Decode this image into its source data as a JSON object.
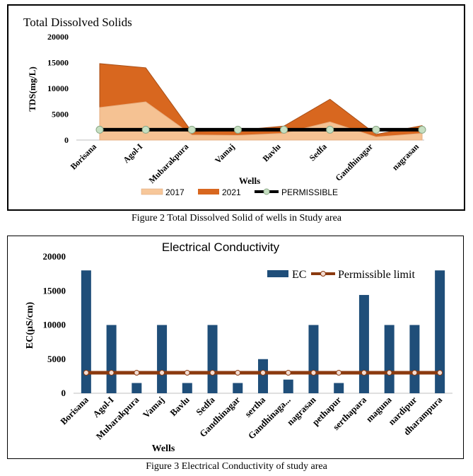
{
  "charts": [
    {
      "title": "Total Dissolved Solids",
      "caption": "Figure 2 Total Dissolved Solid of wells in Study area",
      "xlabel": "Wells",
      "ylabel": "TDS(mg/L)",
      "ylim": [
        0,
        20000
      ],
      "yticks": [
        0,
        5000,
        10000,
        15000,
        20000
      ],
      "colors": {
        "2017": "#f7c79a",
        "2021": "#d8671f",
        "PERMISSIBLE": "#000000",
        "marker": "#c6dfc2"
      }
    },
    {
      "title": "Electrical Conductivity",
      "caption": "Figure 3 Electrical Conductivity of study area",
      "xlabel": "Wells",
      "ylabel": "EC(µS/cm)",
      "ylim": [
        0,
        20000
      ],
      "yticks": [
        0,
        5000,
        10000,
        15000,
        20000
      ],
      "colors": {
        "EC": "#1f4e79",
        "limit": "#8b3a0f",
        "marker": "#f3dcd2"
      }
    }
  ],
  "chart_data": [
    {
      "type": "area",
      "title": "Total Dissolved Solids",
      "xlabel": "Wells",
      "ylabel": "TDS(mg/L)",
      "ylim": [
        0,
        20000
      ],
      "categories": [
        "Borisana",
        "Agol-I",
        "Mubarakpura",
        "Vamaj",
        "Bavlu",
        "Sedfa",
        "Gandhinagar",
        "nagrasan"
      ],
      "series": [
        {
          "name": "2017",
          "values": [
            6300,
            7400,
            1000,
            900,
            1300,
            3500,
            600,
            1300
          ]
        },
        {
          "name": "2021",
          "values": [
            14800,
            14000,
            1600,
            1900,
            2700,
            7900,
            1100,
            2800
          ]
        },
        {
          "name": "PERMISSIBLE",
          "values": [
            2000,
            2000,
            2000,
            2000,
            2000,
            2000,
            2000,
            2000
          ]
        }
      ],
      "legend": "bottom"
    },
    {
      "type": "bar",
      "title": "Electrical Conductivity",
      "xlabel": "Wells",
      "ylabel": "EC(µS/cm)",
      "ylim": [
        0,
        20000
      ],
      "categories": [
        "Borisana",
        "Agol-I",
        "Mubarakpura",
        "Vamaj",
        "Bavlu",
        "Sedfa",
        "Gandhinagar",
        "serthа",
        "Gandhinaga...",
        "nagrasan",
        "pethapur",
        "serthapara",
        "maguna",
        "nardipur",
        "dharampura"
      ],
      "series": [
        {
          "name": "EC",
          "values": [
            18000,
            10000,
            1500,
            10000,
            1500,
            10000,
            1500,
            5000,
            2000,
            10000,
            1500,
            14400,
            10000,
            10000,
            18000
          ]
        },
        {
          "name": "Permissible limit",
          "values": [
            3000,
            3000,
            3000,
            3000,
            3000,
            3000,
            3000,
            3000,
            3000,
            3000,
            3000,
            3000,
            3000,
            3000,
            3000
          ]
        }
      ],
      "legend": "top-right"
    }
  ]
}
